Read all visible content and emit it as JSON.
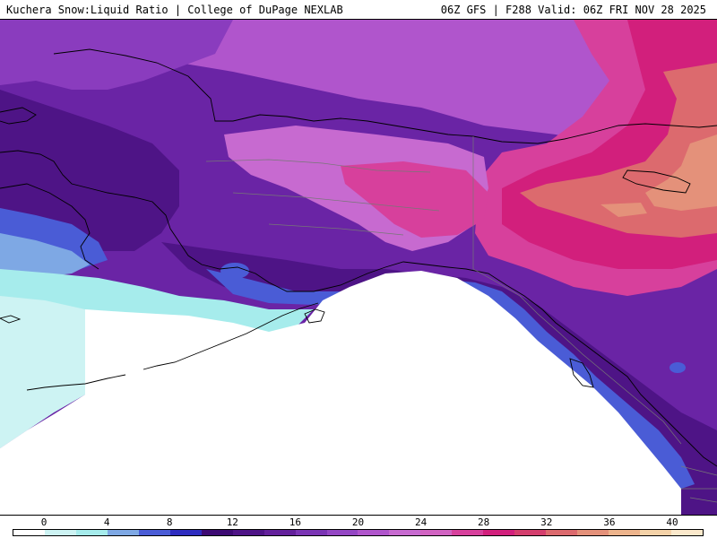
{
  "header": {
    "title_left": "Kuchera Snow:Liquid Ratio | College of DuPage NEXLAB",
    "title_right": "06Z GFS | F288 Valid: 06Z FRI NOV 28 2025"
  },
  "legend": {
    "tick_labels": [
      "0",
      "4",
      "8",
      "12",
      "16",
      "20",
      "24",
      "28",
      "32",
      "36",
      "40"
    ],
    "colors": [
      "#ffffff",
      "#cdf3f3",
      "#a6ecec",
      "#7ea8e4",
      "#4a5cd6",
      "#2e2cc0",
      "#3d0a73",
      "#4e1486",
      "#63209b",
      "#7a34b4",
      "#9446c4",
      "#b055cc",
      "#c76ad0",
      "#d163c2",
      "#d7409c",
      "#d21f7c",
      "#d43e6d",
      "#dc6a6e",
      "#e4917a",
      "#edb48c",
      "#f4d2a8",
      "#fbe9cc"
    ]
  },
  "map": {
    "colors": {
      "ocean": "#ffffff",
      "cyan_light": "#cdf3f3",
      "cyan": "#a6ecec",
      "blue_light": "#7ea8e4",
      "blue": "#4a5cd6",
      "purple_dark": "#4e1486",
      "purple": "#6a24a5",
      "purple_mid": "#8a3cbe",
      "violet": "#b055cc",
      "orchid": "#c76ad0",
      "magenta": "#d7409c",
      "crimson": "#d21f7c",
      "salmon": "#dc6a6e",
      "peach": "#e4917a",
      "coast": "#000000",
      "border_gray": "#777777"
    }
  }
}
